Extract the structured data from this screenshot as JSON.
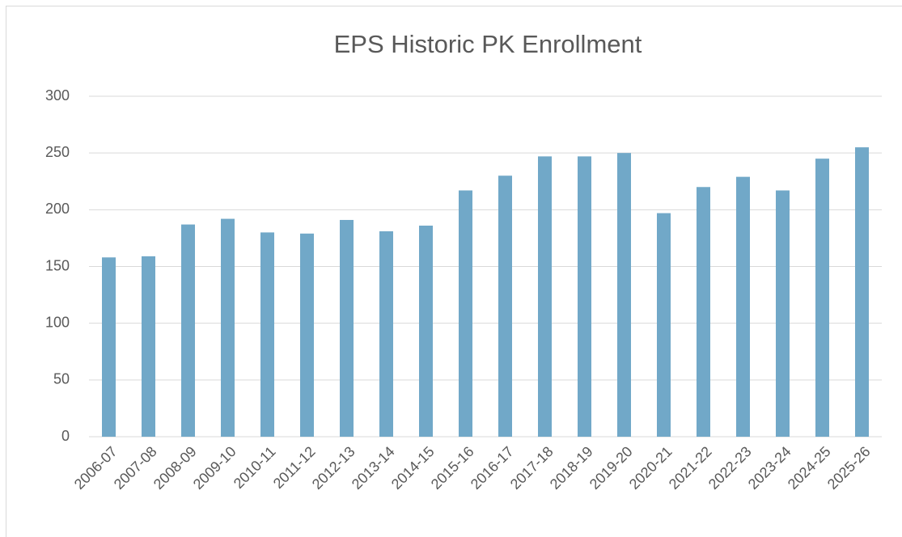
{
  "chart_data": {
    "type": "bar",
    "title": "EPS Historic PK Enrollment",
    "categories": [
      "2006-07",
      "2007-08",
      "2008-09",
      "2009-10",
      "2010-11",
      "2011-12",
      "2012-13",
      "2013-14",
      "2014-15",
      "2015-16",
      "2016-17",
      "2017-18",
      "2018-19",
      "2019-20",
      "2020-21",
      "2021-22",
      "2022-23",
      "2023-24",
      "2024-25",
      "2025-26"
    ],
    "values": [
      158,
      159,
      187,
      192,
      180,
      179,
      191,
      181,
      186,
      217,
      230,
      247,
      247,
      250,
      197,
      220,
      229,
      217,
      245,
      255
    ],
    "color": "#71a8c8",
    "ylim": [
      0,
      300
    ],
    "yticks": [
      0,
      50,
      100,
      150,
      200,
      250,
      300
    ],
    "grid": true
  }
}
